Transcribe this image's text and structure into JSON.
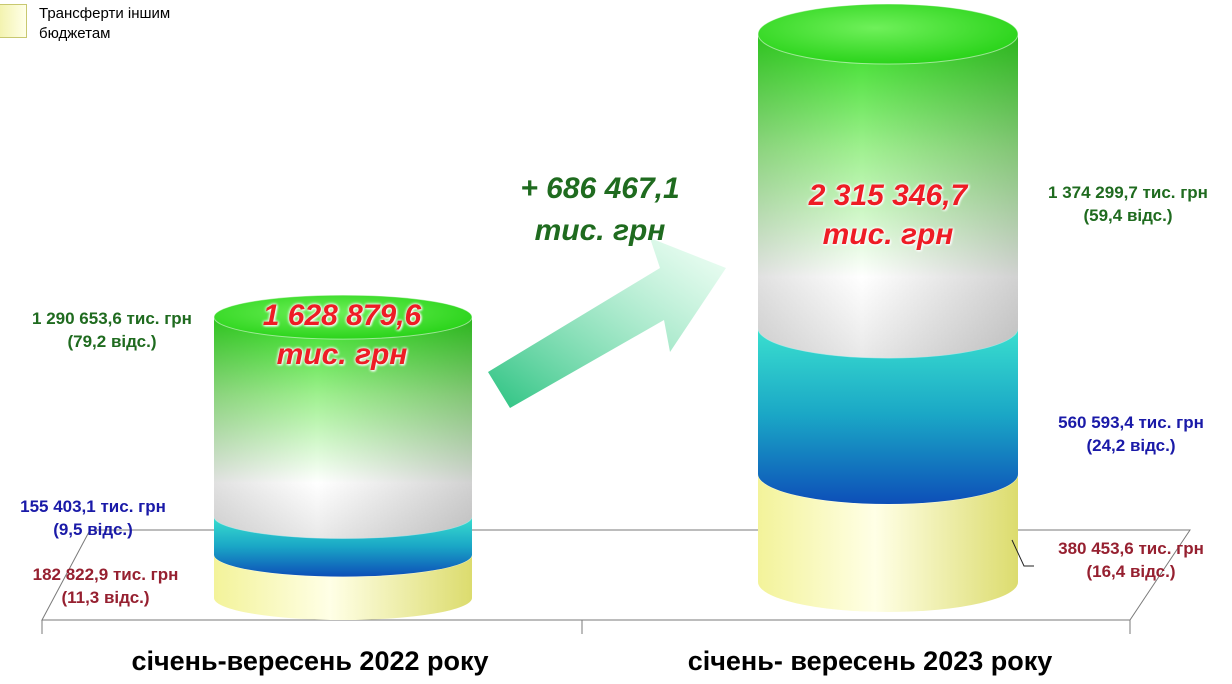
{
  "chart_data": {
    "type": "bar",
    "categories": [
      "січень-вересень 2022 року",
      "січень- вересень 2023 року"
    ],
    "series": [
      {
        "values": [
          182822.9,
          380453.6
        ],
        "labels": [
          {
            "value": "182 822,9 тис. грн",
            "share": "(11,3 відс.)"
          },
          {
            "value": "380 453,6 тис. грн",
            "share": "(16,4 відс.)"
          }
        ],
        "color": "#f4f4a0"
      },
      {
        "values": [
          155403.1,
          560593.4
        ],
        "labels": [
          {
            "value": "155 403,1 тис. грн",
            "share": "(9,5 відс.)"
          },
          {
            "value": "560 593,4 тис. грн",
            "share": "(24,2 відс.)"
          }
        ],
        "color": "#1aa3c8"
      },
      {
        "values": [
          1290653.6,
          1374299.7
        ],
        "labels": [
          {
            "value": "1 290 653,6 тис. грн",
            "share": "(79,2 відс.)"
          },
          {
            "value": "1 374 299,7 тис. грн",
            "share": "(59,4 відс.)"
          }
        ],
        "color": "#33dd22"
      }
    ],
    "totals": [
      {
        "value": "1 628 879,6",
        "unit": "тис. грн"
      },
      {
        "value": "2 315 346,7",
        "unit": "тис. грн"
      }
    ],
    "difference": {
      "value": "+ 686 467,1",
      "unit": "тис. грн"
    },
    "legend": {
      "position": "top-left",
      "items": [
        {
          "label": "Трансферти іншим бюджетам",
          "series_index": 0
        }
      ]
    },
    "colors": {
      "green_text": "#1f6b1f",
      "blue_text": "#1a1aa8",
      "red_text": "#962030",
      "total_text": "#ee1c25"
    }
  }
}
